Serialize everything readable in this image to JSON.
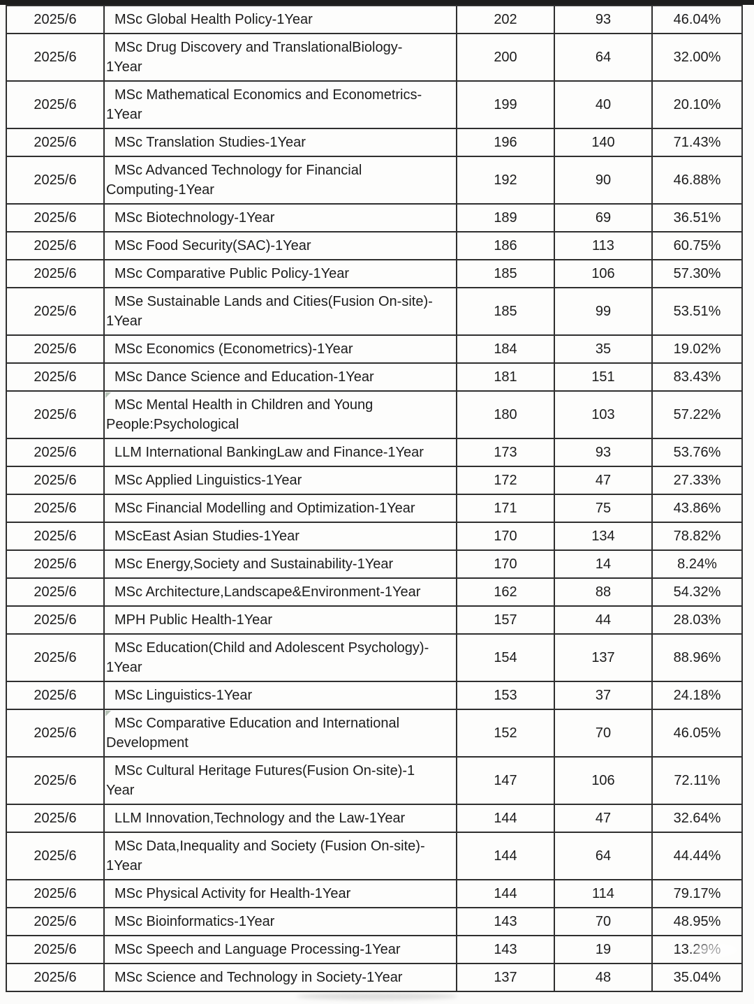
{
  "colors": {
    "border": "#2f2f2f",
    "text": "#1c1c1c",
    "background": "#fbfbfa",
    "top_bar": "#1d1d1d"
  },
  "table": {
    "rows": [
      {
        "date": "2025/6",
        "program": "MSc Global Health Policy-1Year",
        "applications": "202",
        "offers": "93",
        "rate": "46.04%"
      },
      {
        "date": "2025/6",
        "program": "MSc Drug Discovery and TranslationalBiology-\n1Year",
        "applications": "200",
        "offers": "64",
        "rate": "32.00%"
      },
      {
        "date": "2025/6",
        "program": "MSc Mathematical Economics and Econometrics-\n1Year",
        "applications": "199",
        "offers": "40",
        "rate": "20.10%"
      },
      {
        "date": "2025/6",
        "program": "MSc Translation Studies-1Year",
        "applications": "196",
        "offers": "140",
        "rate": "71.43%"
      },
      {
        "date": "2025/6",
        "program": "MSc Advanced Technology for Financial\nComputing-1Year",
        "applications": "192",
        "offers": "90",
        "rate": "46.88%"
      },
      {
        "date": "2025/6",
        "program": "MSc Biotechnology-1Year",
        "applications": "189",
        "offers": "69",
        "rate": "36.51%"
      },
      {
        "date": "2025/6",
        "program": "MSc Food Security(SAC)-1Year",
        "applications": "186",
        "offers": "113",
        "rate": "60.75%"
      },
      {
        "date": "2025/6",
        "program": "MSc Comparative Public Policy-1Year",
        "applications": "185",
        "offers": "106",
        "rate": "57.30%"
      },
      {
        "date": "2025/6",
        "program": "MSe Sustainable Lands and Cities(Fusion On-site)-\n1Year",
        "applications": "185",
        "offers": "99",
        "rate": "53.51%"
      },
      {
        "date": "2025/6",
        "program": "MSc Economics (Econometrics)-1Year",
        "applications": "184",
        "offers": "35",
        "rate": "19.02%"
      },
      {
        "date": "2025/6",
        "program": "MSc Dance Science and Education-1Year",
        "applications": "181",
        "offers": "151",
        "rate": "83.43%"
      },
      {
        "date": "2025/6",
        "program": "MSc Mental Health in Children and Young\nPeople:Psychological",
        "applications": "180",
        "offers": "103",
        "rate": "57.22%",
        "corner_mark": true
      },
      {
        "date": "2025/6",
        "program": "LLM International BankingLaw and Finance-1Year",
        "applications": "173",
        "offers": "93",
        "rate": "53.76%"
      },
      {
        "date": "2025/6",
        "program": "MSc Applied Linguistics-1Year",
        "applications": "172",
        "offers": "47",
        "rate": "27.33%"
      },
      {
        "date": "2025/6",
        "program": "MSc Financial Modelling and Optimization-1Year",
        "applications": "171",
        "offers": "75",
        "rate": "43.86%"
      },
      {
        "date": "2025/6",
        "program": "MScEast Asian Studies-1Year",
        "applications": "170",
        "offers": "134",
        "rate": "78.82%"
      },
      {
        "date": "2025/6",
        "program": "MSc Energy,Society and Sustainability-1Year",
        "applications": "170",
        "offers": "14",
        "rate": "8.24%"
      },
      {
        "date": "2025/6",
        "program": "MSc Architecture,Landscape&Environment-1Year",
        "applications": "162",
        "offers": "88",
        "rate": "54.32%"
      },
      {
        "date": "2025/6",
        "program": "MPH Public Health-1Year",
        "applications": "157",
        "offers": "44",
        "rate": "28.03%"
      },
      {
        "date": "2025/6",
        "program": "MSc Education(Child and Adolescent Psychology)-\n1Year",
        "applications": "154",
        "offers": "137",
        "rate": "88.96%"
      },
      {
        "date": "2025/6",
        "program": "MSc Linguistics-1Year",
        "applications": "153",
        "offers": "37",
        "rate": "24.18%"
      },
      {
        "date": "2025/6",
        "program": "MSc Comparative Education and International\nDevelopment",
        "applications": "152",
        "offers": "70",
        "rate": "46.05%",
        "corner_mark": true
      },
      {
        "date": "2025/6",
        "program": "MSc Cultural Heritage Futures(Fusion On-site)-1\nYear",
        "applications": "147",
        "offers": "106",
        "rate": "72.11%"
      },
      {
        "date": "2025/6",
        "program": "LLM Innovation,Technology and the Law-1Year",
        "applications": "144",
        "offers": "47",
        "rate": "32.64%"
      },
      {
        "date": "2025/6",
        "program": "MSc Data,Inequality and Society (Fusion On-site)-\n1Year",
        "applications": "144",
        "offers": "64",
        "rate": "44.44%"
      },
      {
        "date": "2025/6",
        "program": "MSc Physical Activity for Health-1Year",
        "applications": "144",
        "offers": "114",
        "rate": "79.17%"
      },
      {
        "date": "2025/6",
        "program": "MSc Bioinformatics-1Year",
        "applications": "143",
        "offers": "70",
        "rate": "48.95%"
      },
      {
        "date": "2025/6",
        "program": "MSc Speech and Language Processing-1Year",
        "applications": "143",
        "offers": "19",
        "rate": "13.29%",
        "smudge": true
      },
      {
        "date": "2025/6",
        "program": "MSc Science and Technology in Society-1Year",
        "applications": "137",
        "offers": "48",
        "rate": "35.04%"
      }
    ]
  }
}
